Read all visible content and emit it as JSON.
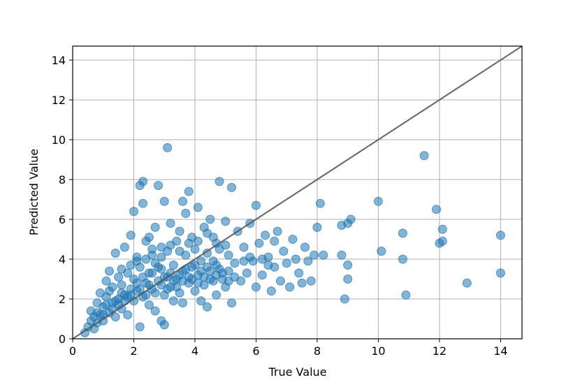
{
  "chart_data": {
    "type": "scatter",
    "xlabel": "True Value",
    "ylabel": "Predicted Value",
    "xlim": [
      0,
      14.7
    ],
    "ylim": [
      0,
      14.7
    ],
    "xticks": [
      0,
      2,
      4,
      6,
      8,
      10,
      12,
      14
    ],
    "yticks": [
      0,
      2,
      4,
      6,
      8,
      10,
      12,
      14
    ],
    "grid": true,
    "point_color": "#1f77b4",
    "reference_line": {
      "from": [
        0,
        0
      ],
      "to": [
        14.7,
        14.7
      ],
      "color": "#555555"
    },
    "series": [
      {
        "points": [
          [
            0.4,
            0.3
          ],
          [
            0.5,
            0.6
          ],
          [
            0.6,
            0.9
          ],
          [
            0.6,
            1.4
          ],
          [
            0.7,
            0.5
          ],
          [
            0.7,
            1.1
          ],
          [
            0.8,
            1.8
          ],
          [
            0.8,
            0.8
          ],
          [
            0.9,
            2.3
          ],
          [
            0.9,
            1.2
          ],
          [
            1.0,
            0.9
          ],
          [
            1.0,
            1.6
          ],
          [
            1.1,
            2.1
          ],
          [
            1.1,
            2.9
          ],
          [
            1.2,
            1.3
          ],
          [
            1.2,
            3.4
          ],
          [
            1.3,
            1.8
          ],
          [
            1.3,
            2.6
          ],
          [
            1.4,
            1.1
          ],
          [
            1.4,
            4.3
          ],
          [
            1.5,
            2.0
          ],
          [
            1.5,
            3.1
          ],
          [
            1.6,
            1.5
          ],
          [
            1.6,
            2.7
          ],
          [
            1.7,
            4.6
          ],
          [
            1.7,
            2.2
          ],
          [
            1.8,
            1.2
          ],
          [
            1.8,
            3.3
          ],
          [
            1.9,
            2.5
          ],
          [
            1.9,
            5.2
          ],
          [
            2.0,
            1.9
          ],
          [
            2.0,
            3.0
          ],
          [
            2.0,
            6.4
          ],
          [
            2.1,
            2.4
          ],
          [
            2.1,
            4.1
          ],
          [
            2.2,
            0.6
          ],
          [
            2.2,
            3.6
          ],
          [
            2.2,
            7.7
          ],
          [
            2.3,
            2.1
          ],
          [
            2.3,
            6.8
          ],
          [
            2.3,
            7.9
          ],
          [
            2.4,
            2.8
          ],
          [
            2.4,
            4.9
          ],
          [
            2.5,
            1.7
          ],
          [
            2.5,
            3.3
          ],
          [
            2.5,
            5.1
          ],
          [
            2.6,
            2.5
          ],
          [
            2.6,
            4.2
          ],
          [
            2.7,
            1.4
          ],
          [
            2.7,
            3.8
          ],
          [
            2.7,
            5.6
          ],
          [
            2.8,
            2.9
          ],
          [
            2.8,
            7.7
          ],
          [
            2.9,
            0.9
          ],
          [
            2.9,
            3.5
          ],
          [
            2.9,
            4.6
          ],
          [
            3.0,
            2.2
          ],
          [
            3.0,
            6.9
          ],
          [
            3.0,
            0.7
          ],
          [
            3.1,
            3.1
          ],
          [
            3.1,
            9.6
          ],
          [
            3.1,
            4.4
          ],
          [
            3.2,
            2.6
          ],
          [
            3.2,
            5.8
          ],
          [
            3.3,
            1.9
          ],
          [
            3.3,
            3.7
          ],
          [
            3.4,
            3.0
          ],
          [
            3.4,
            4.9
          ],
          [
            3.5,
            2.3
          ],
          [
            3.5,
            5.4
          ],
          [
            3.6,
            3.4
          ],
          [
            3.6,
            6.9
          ],
          [
            3.6,
            1.8
          ],
          [
            3.7,
            4.2
          ],
          [
            3.7,
            6.3
          ],
          [
            3.8,
            2.8
          ],
          [
            3.8,
            7.4
          ],
          [
            3.9,
            3.6
          ],
          [
            3.9,
            5.1
          ],
          [
            4.0,
            2.4
          ],
          [
            4.0,
            4.5
          ],
          [
            4.1,
            3.2
          ],
          [
            4.1,
            6.6
          ],
          [
            4.2,
            1.9
          ],
          [
            4.2,
            3.9
          ],
          [
            4.3,
            5.6
          ],
          [
            4.3,
            2.7
          ],
          [
            4.4,
            4.3
          ],
          [
            4.4,
            1.6
          ],
          [
            4.5,
            3.4
          ],
          [
            4.5,
            6.0
          ],
          [
            4.6,
            2.9
          ],
          [
            4.6,
            5.1
          ],
          [
            4.7,
            3.7
          ],
          [
            4.7,
            2.2
          ],
          [
            4.8,
            4.5
          ],
          [
            4.8,
            7.9
          ],
          [
            4.9,
            3.0
          ],
          [
            5.0,
            5.9
          ],
          [
            5.0,
            2.6
          ],
          [
            5.1,
            4.2
          ],
          [
            5.1,
            3.4
          ],
          [
            5.2,
            1.8
          ],
          [
            5.2,
            7.6
          ],
          [
            5.3,
            3.8
          ],
          [
            5.4,
            5.4
          ],
          [
            5.5,
            2.9
          ],
          [
            5.6,
            4.6
          ],
          [
            5.7,
            3.3
          ],
          [
            5.8,
            5.8
          ],
          [
            5.9,
            3.9
          ],
          [
            6.0,
            2.6
          ],
          [
            6.0,
            6.7
          ],
          [
            6.1,
            4.8
          ],
          [
            6.2,
            3.2
          ],
          [
            6.3,
            5.2
          ],
          [
            6.4,
            4.1
          ],
          [
            6.5,
            2.4
          ],
          [
            6.6,
            3.6
          ],
          [
            6.7,
            5.4
          ],
          [
            6.8,
            2.9
          ],
          [
            6.9,
            4.4
          ],
          [
            7.0,
            3.8
          ],
          [
            7.1,
            2.6
          ],
          [
            7.2,
            5.0
          ],
          [
            7.3,
            4.0
          ],
          [
            7.4,
            3.3
          ],
          [
            7.5,
            2.8
          ],
          [
            7.6,
            4.6
          ],
          [
            7.7,
            3.9
          ],
          [
            7.8,
            2.9
          ],
          [
            7.9,
            4.2
          ],
          [
            8.0,
            5.6
          ],
          [
            8.1,
            6.8
          ],
          [
            8.2,
            4.2
          ],
          [
            8.8,
            5.7
          ],
          [
            8.8,
            4.2
          ],
          [
            8.9,
            2.0
          ],
          [
            9.0,
            3.7
          ],
          [
            9.0,
            3.0
          ],
          [
            9.0,
            5.8
          ],
          [
            9.1,
            6.0
          ],
          [
            10.0,
            6.9
          ],
          [
            10.1,
            4.4
          ],
          [
            10.8,
            4.0
          ],
          [
            10.8,
            5.3
          ],
          [
            10.9,
            2.2
          ],
          [
            11.5,
            9.2
          ],
          [
            11.9,
            6.5
          ],
          [
            12.0,
            4.8
          ],
          [
            12.1,
            4.9
          ],
          [
            12.1,
            5.5
          ],
          [
            12.9,
            2.8
          ],
          [
            14.0,
            5.2
          ],
          [
            14.0,
            3.3
          ],
          [
            1.2,
            2.4
          ],
          [
            1.4,
            1.9
          ],
          [
            1.6,
            2.3
          ],
          [
            1.8,
            2.1
          ],
          [
            2.1,
            2.8
          ],
          [
            2.3,
            3.1
          ],
          [
            2.4,
            2.2
          ],
          [
            2.6,
            3.3
          ],
          [
            2.8,
            3.6
          ],
          [
            3.0,
            3.1
          ],
          [
            3.2,
            3.3
          ],
          [
            3.3,
            2.9
          ],
          [
            3.5,
            3.2
          ],
          [
            3.7,
            3.5
          ],
          [
            3.8,
            3.1
          ],
          [
            4.0,
            3.7
          ],
          [
            4.2,
            3.4
          ],
          [
            4.4,
            3.6
          ],
          [
            4.6,
            3.9
          ],
          [
            4.8,
            3.5
          ],
          [
            1.0,
            1.2
          ],
          [
            1.3,
            1.5
          ],
          [
            1.5,
            1.7
          ],
          [
            1.7,
            1.9
          ],
          [
            1.9,
            2.2
          ],
          [
            2.2,
            2.5
          ],
          [
            2.5,
            2.7
          ],
          [
            2.7,
            2.3
          ],
          [
            2.9,
            2.7
          ],
          [
            3.1,
            2.5
          ],
          [
            3.4,
            2.6
          ],
          [
            3.6,
            2.9
          ],
          [
            3.9,
            3.0
          ],
          [
            4.1,
            2.8
          ],
          [
            4.3,
            3.1
          ],
          [
            4.5,
            3.0
          ],
          [
            4.7,
            3.2
          ],
          [
            4.9,
            3.3
          ],
          [
            5.1,
            2.9
          ],
          [
            5.3,
            3.1
          ],
          [
            0.8,
            1.3
          ],
          [
            1.1,
            1.7
          ],
          [
            1.6,
            3.5
          ],
          [
            1.9,
            3.7
          ],
          [
            2.1,
            3.9
          ],
          [
            2.4,
            4.0
          ],
          [
            2.6,
            4.5
          ],
          [
            2.9,
            4.1
          ],
          [
            3.2,
            4.7
          ],
          [
            3.5,
            4.4
          ],
          [
            3.8,
            4.8
          ],
          [
            4.1,
            4.9
          ],
          [
            4.4,
            5.3
          ],
          [
            4.7,
            4.8
          ],
          [
            5.0,
            4.7
          ],
          [
            5.6,
            3.9
          ],
          [
            5.8,
            4.1
          ],
          [
            6.2,
            4.0
          ],
          [
            6.4,
            3.7
          ],
          [
            6.6,
            4.9
          ]
        ]
      }
    ]
  }
}
